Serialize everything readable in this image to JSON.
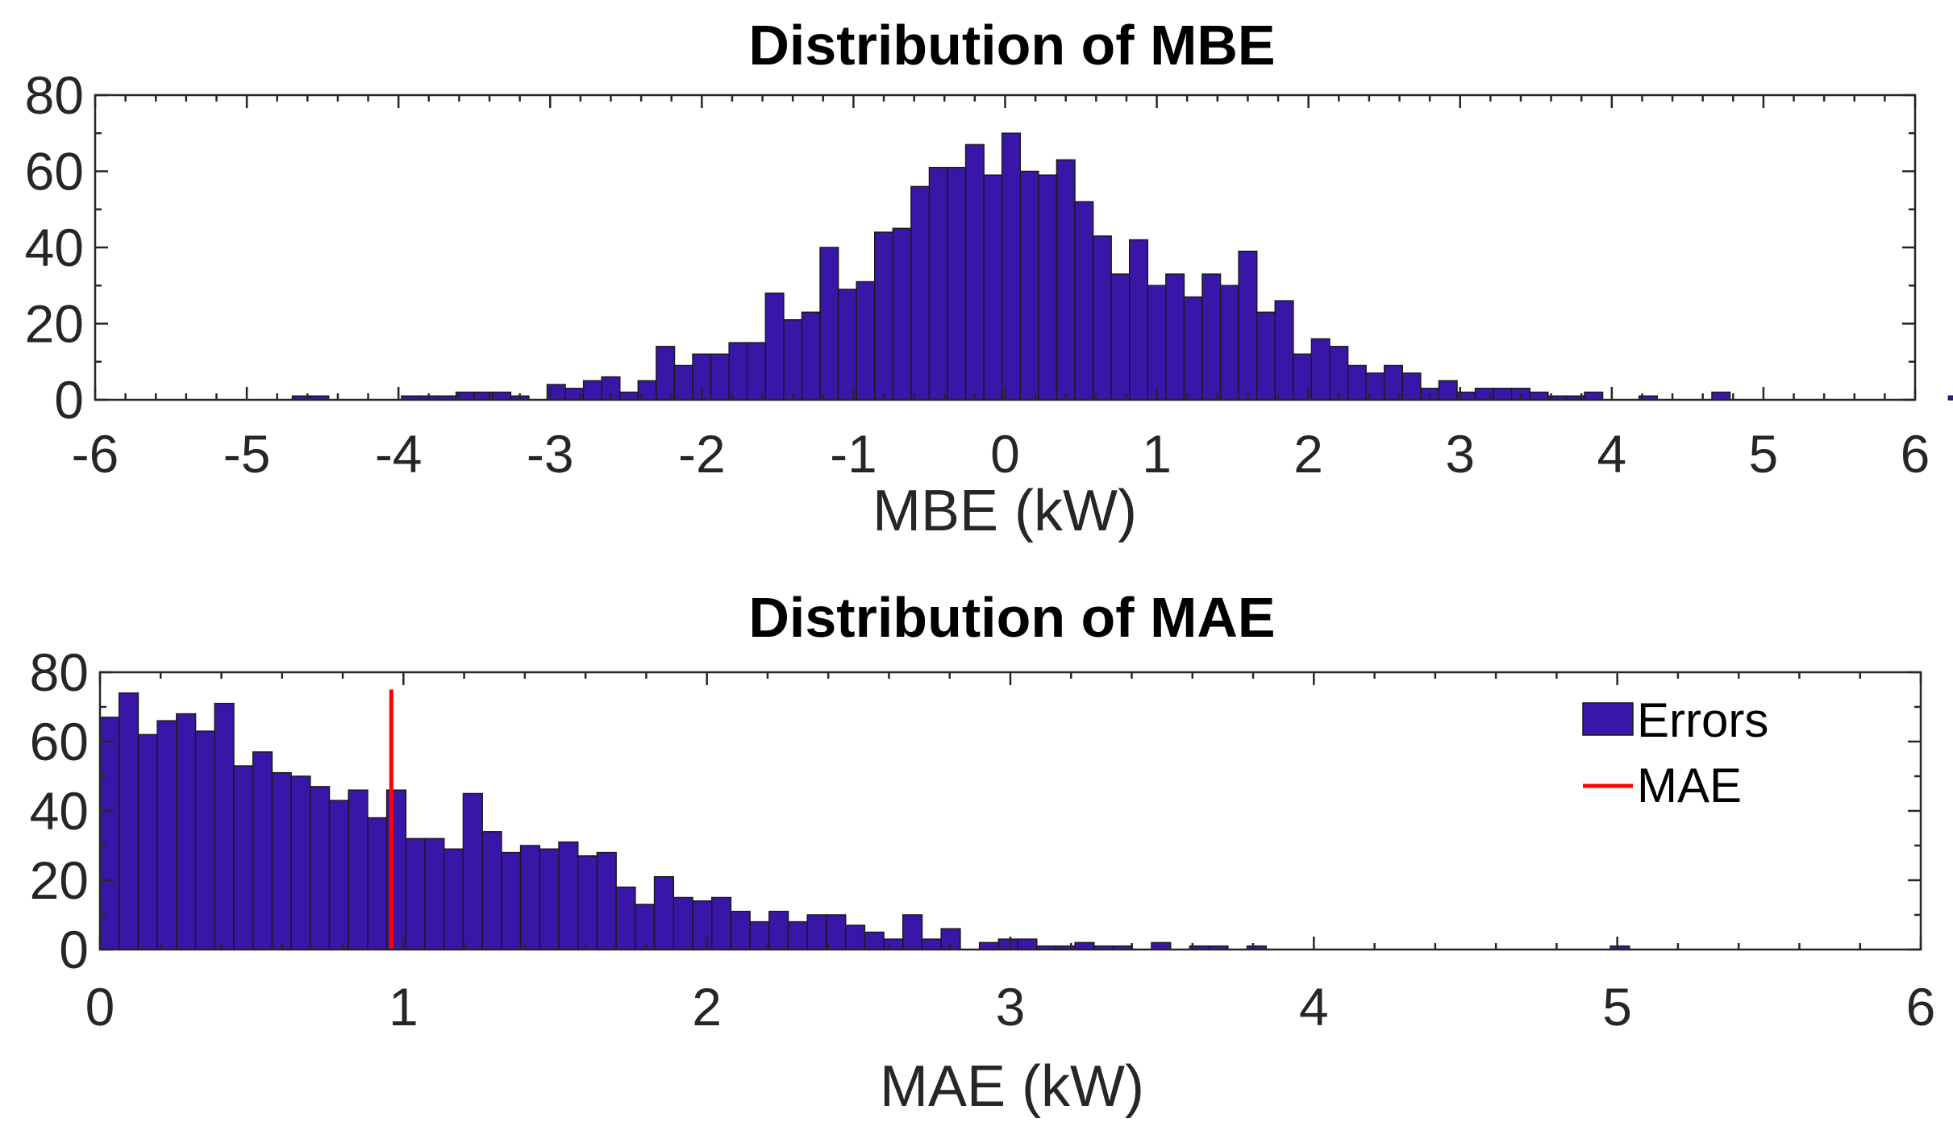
{
  "chart_data": [
    {
      "type": "bar",
      "title": "Distribution of MBE",
      "xlabel": "MBE (kW)",
      "ylabel": "",
      "xlim": [
        -6,
        6
      ],
      "ylim": [
        0,
        80
      ],
      "xticks": [
        "-6",
        "-5",
        "-4",
        "-3",
        "-2",
        "-1",
        "0",
        "1",
        "2",
        "3",
        "4",
        "5",
        "6"
      ],
      "yticks": [
        "0",
        "20",
        "40",
        "60",
        "80"
      ],
      "bin_start": -4.7,
      "bin_width": 0.12,
      "counts": [
        1,
        1,
        0,
        0,
        0,
        0,
        1,
        1,
        1,
        2,
        2,
        2,
        1,
        0,
        4,
        3,
        5,
        6,
        2,
        5,
        14,
        9,
        12,
        12,
        15,
        15,
        28,
        21,
        23,
        40,
        29,
        31,
        44,
        45,
        56,
        61,
        61,
        67,
        59,
        70,
        60,
        59,
        63,
        52,
        43,
        33,
        42,
        30,
        33,
        27,
        33,
        30,
        39,
        23,
        26,
        12,
        16,
        14,
        9,
        7,
        9,
        7,
        3,
        5,
        2,
        3,
        3,
        3,
        2,
        1,
        1,
        2,
        0,
        0,
        1,
        0,
        0,
        0,
        2,
        0,
        0,
        0,
        0,
        0,
        0,
        0,
        0,
        0,
        0,
        0,
        0,
        1
      ]
    },
    {
      "type": "bar",
      "title": "Distribution of MAE",
      "xlabel": "MAE (kW)",
      "ylabel": "",
      "xlim": [
        0,
        6
      ],
      "ylim": [
        0,
        80
      ],
      "xticks": [
        "0",
        "1",
        "2",
        "3",
        "4",
        "5",
        "6"
      ],
      "yticks": [
        "0",
        "20",
        "40",
        "60",
        "80"
      ],
      "bin_start": 0,
      "bin_width": 0.063,
      "counts": [
        67,
        74,
        62,
        66,
        68,
        63,
        71,
        53,
        57,
        51,
        50,
        47,
        43,
        46,
        38,
        46,
        32,
        32,
        29,
        45,
        34,
        28,
        30,
        29,
        31,
        27,
        28,
        18,
        13,
        21,
        15,
        14,
        15,
        11,
        8,
        11,
        8,
        10,
        10,
        7,
        5,
        3,
        10,
        3,
        6,
        0,
        2,
        3,
        3,
        1,
        1,
        2,
        1,
        1,
        0,
        2,
        0,
        1,
        1,
        0,
        1,
        0,
        0,
        0,
        0,
        0,
        0,
        0,
        0,
        0,
        0,
        0,
        0,
        0,
        0,
        0,
        0,
        0,
        0,
        1,
        0,
        0,
        0,
        0,
        0,
        0,
        0,
        0,
        0,
        0,
        0,
        0,
        0,
        0,
        0,
        0,
        0,
        0,
        0,
        0,
        0,
        0,
        0,
        0,
        0,
        0,
        0,
        0,
        0,
        0,
        0
      ],
      "mae_value": 0.96,
      "legend": [
        {
          "label": "Errors",
          "color": "#3a16a8"
        },
        {
          "label": "MAE",
          "color": "#ff0000"
        }
      ]
    }
  ]
}
